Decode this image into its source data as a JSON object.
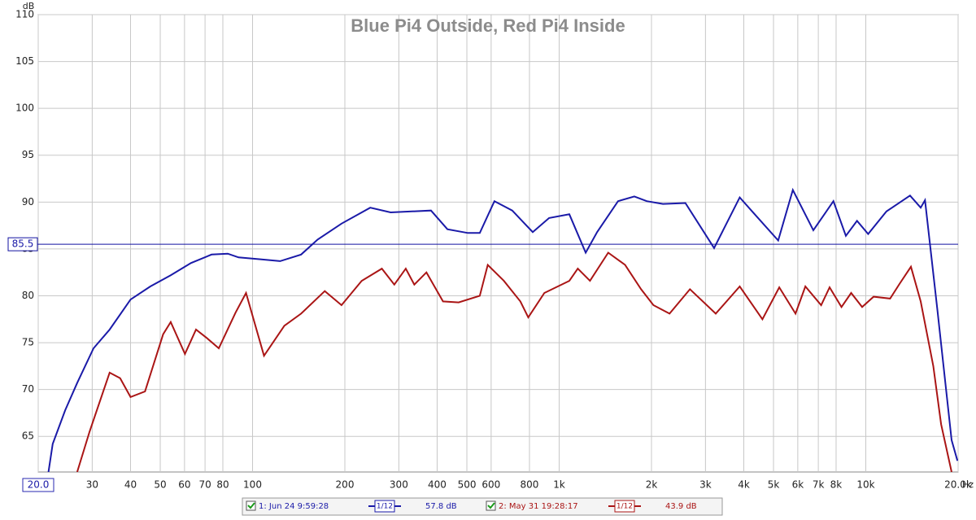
{
  "chart_data": {
    "type": "line",
    "title": "Blue Pi4 Outside, Red Pi4 Inside",
    "y_unit": "dB",
    "x_unit": "Hz",
    "xscale": "log",
    "grid": true,
    "xlim": [
      20,
      20000
    ],
    "ylim": [
      61.2,
      110
    ],
    "xticks": [
      {
        "value": 20,
        "label": "20.0"
      },
      30,
      40,
      50,
      60,
      70,
      80,
      100,
      200,
      300,
      400,
      500,
      600,
      800,
      {
        "value": 1000,
        "label": "1k"
      },
      {
        "value": 2000,
        "label": "2k"
      },
      {
        "value": 3000,
        "label": "3k"
      },
      {
        "value": 4000,
        "label": "4k"
      },
      {
        "value": 5000,
        "label": "5k"
      },
      {
        "value": 6000,
        "label": "6k"
      },
      {
        "value": 7000,
        "label": "7k"
      },
      {
        "value": 8000,
        "label": "8k"
      },
      {
        "value": 10000,
        "label": "10k"
      },
      {
        "value": 20000,
        "label": "20.0k"
      }
    ],
    "yticks": [
      65,
      70,
      75,
      80,
      85,
      90,
      95,
      100,
      105,
      110
    ],
    "cursor_y": 85.5,
    "series": [
      {
        "name": "1: Jun 24 9:59:28",
        "smoothing": "1/12",
        "level": "57.8 dB",
        "color": "#1a1aa8",
        "x": [
          21.6,
          22.3,
          24.5,
          26.8,
          30.3,
          34.2,
          40,
          46.4,
          54.1,
          63,
          73.5,
          83,
          90,
          106,
          123,
          144,
          163,
          195,
          242,
          282,
          382,
          432,
          504,
          551,
          615,
          703,
          820,
          927,
          1079,
          1220,
          1330,
          1556,
          1758,
          1930,
          2180,
          2580,
          3200,
          3880,
          4260,
          5180,
          5780,
          6745,
          7840,
          8610,
          9360,
          10180,
          11680,
          13940,
          15100,
          15600,
          17100,
          19050,
          19900
        ],
        "values": [
          61.2,
          64.2,
          67.8,
          70.7,
          74.4,
          76.4,
          79.6,
          81,
          82.2,
          83.5,
          84.4,
          84.5,
          84.1,
          83.9,
          83.7,
          84.4,
          86,
          87.7,
          89.4,
          88.9,
          89.1,
          87.1,
          86.7,
          86.7,
          90.1,
          89.1,
          86.8,
          88.3,
          88.7,
          84.6,
          86.8,
          90.1,
          90.6,
          90.1,
          89.8,
          89.9,
          85.1,
          90.5,
          89,
          85.9,
          91.3,
          87,
          90.1,
          86.4,
          88,
          86.6,
          89,
          90.7,
          89.4,
          90.2,
          78.6,
          64.6,
          62.4
        ]
      },
      {
        "name": "2: May 31 19:28:17",
        "smoothing": "1/12",
        "level": "43.9 dB",
        "color": "#aa1515",
        "x": [
          26.8,
          29.4,
          34.2,
          37,
          40,
          44.6,
          51.1,
          54.1,
          60.2,
          65.4,
          70.9,
          77.6,
          88,
          95.2,
          109,
          127,
          144,
          172,
          195,
          227,
          264,
          290,
          316,
          337,
          369,
          418,
          470,
          551,
          585,
          660,
          747,
          793,
          895,
          1079,
          1150,
          1260,
          1445,
          1640,
          1850,
          2030,
          2290,
          2670,
          3240,
          3880,
          4600,
          5220,
          5900,
          6350,
          7150,
          7620,
          8330,
          8960,
          9730,
          10600,
          12000,
          12900,
          14030,
          15100,
          16600,
          17600,
          19050
        ],
        "values": [
          61.2,
          65.5,
          71.8,
          71.2,
          69.2,
          69.8,
          75.9,
          77.2,
          73.8,
          76.4,
          75.5,
          74.4,
          78.2,
          80.3,
          73.6,
          76.8,
          78.1,
          80.5,
          79,
          81.6,
          82.9,
          81.2,
          82.9,
          81.2,
          82.5,
          79.4,
          79.3,
          80,
          83.3,
          81.6,
          79.4,
          77.7,
          80.3,
          81.6,
          82.9,
          81.6,
          84.6,
          83.3,
          80.7,
          79,
          78.1,
          80.7,
          78.1,
          81,
          77.5,
          80.9,
          78.1,
          81,
          79,
          80.9,
          78.8,
          80.3,
          78.8,
          79.9,
          79.7,
          81.3,
          83.1,
          79.4,
          72.5,
          66.3,
          61.2
        ]
      }
    ]
  }
}
